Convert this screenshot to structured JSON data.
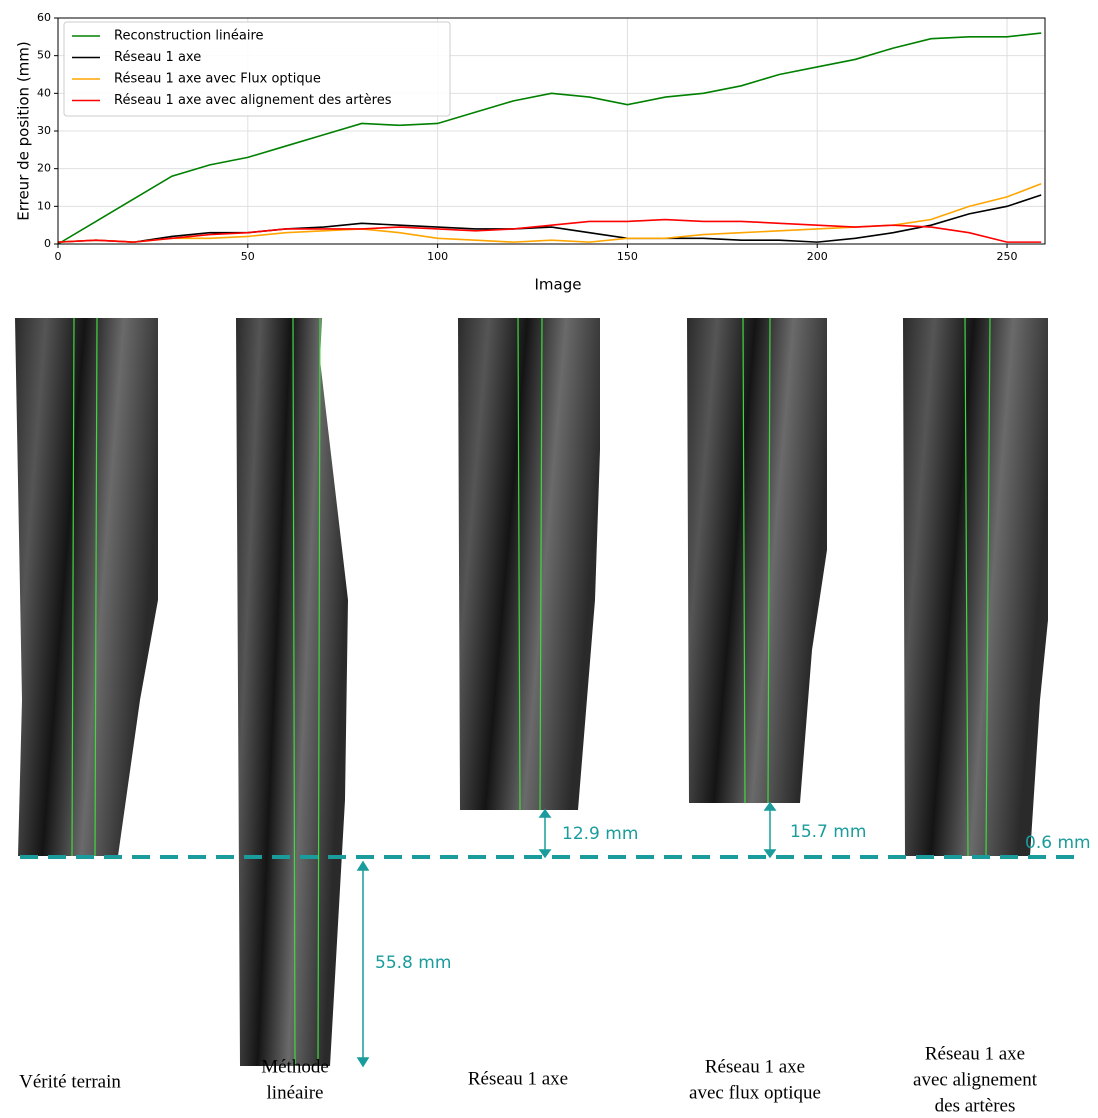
{
  "chart_data": {
    "type": "line",
    "xlabel": "Image",
    "ylabel": "Erreur de position (mm)",
    "x": [
      0,
      10,
      20,
      30,
      40,
      50,
      60,
      70,
      80,
      90,
      100,
      110,
      120,
      130,
      140,
      150,
      160,
      170,
      180,
      190,
      200,
      210,
      220,
      230,
      240,
      250,
      259
    ],
    "series": [
      {
        "name": "Reconstruction linéaire",
        "color": "#008000",
        "values": [
          0,
          6,
          12,
          18,
          21,
          23,
          26,
          29,
          32,
          31.5,
          32,
          35,
          38,
          40,
          39,
          37,
          39,
          40,
          42,
          45,
          47,
          49,
          52,
          54.5,
          55,
          55,
          56
        ]
      },
      {
        "name": "Réseau 1 axe",
        "color": "#000000",
        "values": [
          0.5,
          1,
          0.5,
          2,
          3,
          3,
          4,
          4.5,
          5.5,
          5,
          4.5,
          4,
          4,
          4.5,
          3,
          1.5,
          1.5,
          1.5,
          1,
          1,
          0.5,
          1.5,
          3,
          5,
          8,
          10,
          13
        ]
      },
      {
        "name": "Réseau 1 axe avec Flux optique",
        "color": "#ffa500",
        "values": [
          0.5,
          1,
          0.5,
          1.5,
          1.5,
          2,
          3,
          3.5,
          4,
          3,
          1.5,
          1,
          0.5,
          1,
          0.5,
          1.5,
          1.5,
          2.5,
          3,
          3.5,
          4,
          4.5,
          5,
          6.5,
          10,
          12.5,
          16
        ]
      },
      {
        "name": "Réseau 1 axe avec alignement des artères",
        "color": "#ff0000",
        "values": [
          0.5,
          1,
          0.5,
          1.5,
          2.5,
          3,
          4,
          4,
          4,
          4.5,
          4,
          3.5,
          4,
          5,
          6,
          6,
          6.5,
          6,
          6,
          5.5,
          5,
          4.5,
          5,
          4.5,
          3,
          0.5,
          0.5
        ]
      }
    ],
    "xlim": [
      0,
      260
    ],
    "ylim": [
      0,
      60
    ],
    "xticks": [
      0,
      50,
      100,
      150,
      200,
      250
    ],
    "yticks": [
      0,
      10,
      20,
      30,
      40,
      50,
      60
    ],
    "grid": true,
    "legend": "upper-left"
  },
  "figure": {
    "panels": [
      {
        "label": [
          "Vérité terrain"
        ]
      },
      {
        "label": [
          "Méthode",
          "linéaire"
        ]
      },
      {
        "label": [
          "Réseau 1 axe"
        ]
      },
      {
        "label": [
          "Réseau 1 axe",
          "avec flux optique"
        ]
      },
      {
        "label": [
          "Réseau 1 axe",
          "avec alignement",
          "des artères"
        ]
      }
    ],
    "annotations": [
      "55.8 mm",
      "12.9 mm",
      "15.7 mm",
      "0.6 mm"
    ]
  }
}
